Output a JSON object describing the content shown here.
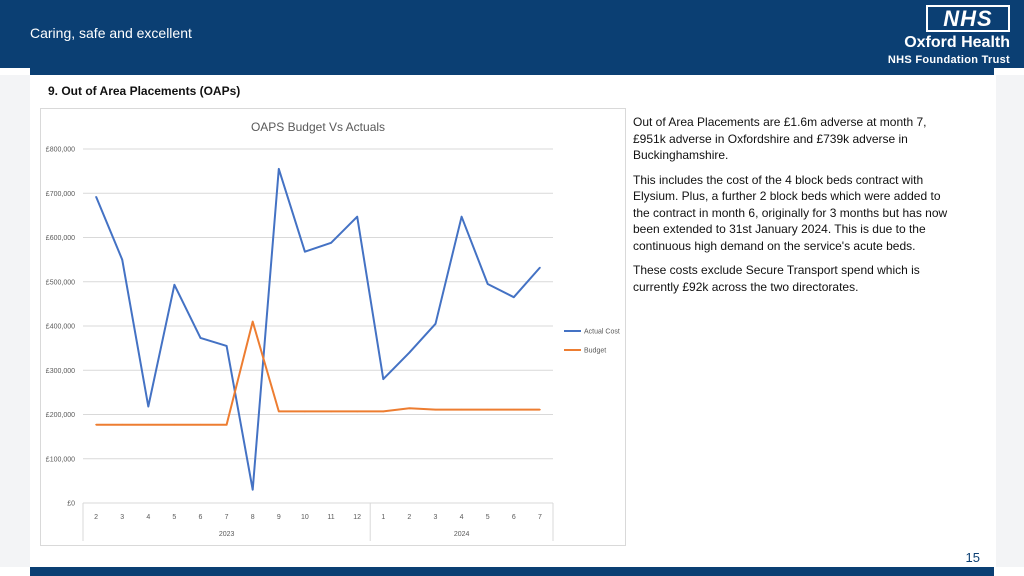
{
  "header": {
    "tagline": "Caring, safe and excellent",
    "logo": "NHS",
    "org_name": "Oxford Health",
    "org_sub": "NHS Foundation Trust"
  },
  "section_title": "9. Out of Area Placements (OAPs)",
  "paragraphs": [
    "Out of Area Placements are £1.6m adverse at month 7, £951k adverse in Oxfordshire and £739k adverse in Buckinghamshire.",
    "This includes the cost of the 4 block beds contract with Elysium.  Plus, a further 2 block beds which were added to the contract in month 6, originally for 3 months but has now been extended to 31st January 2024. This is due to the continuous high demand on the service's acute beds.",
    "These costs exclude Secure Transport spend which is currently £92k across the two directorates."
  ],
  "page_number": "15",
  "chart_data": {
    "type": "line",
    "title": "OAPS Budget Vs Actuals",
    "categories": [
      "2",
      "3",
      "4",
      "5",
      "6",
      "7",
      "8",
      "9",
      "10",
      "11",
      "12",
      "1",
      "2",
      "3",
      "4",
      "5",
      "6",
      "7"
    ],
    "groups": [
      {
        "label": "2023",
        "start": 0,
        "end": 10
      },
      {
        "label": "2024",
        "start": 11,
        "end": 17
      }
    ],
    "y_ticks": [
      "£0",
      "£100,000",
      "£200,000",
      "£300,000",
      "£400,000",
      "£500,000",
      "£600,000",
      "£700,000",
      "£800,000"
    ],
    "ylim": [
      0,
      800000
    ],
    "y_step": 100000,
    "grid": true,
    "legend_position": "right",
    "series": [
      {
        "name": "Actual Cost",
        "color": "#4472c4",
        "values": [
          692000,
          550000,
          218000,
          493000,
          373000,
          355000,
          30000,
          755000,
          568000,
          588000,
          647000,
          280000,
          340000,
          405000,
          647000,
          495000,
          465000,
          532000
        ]
      },
      {
        "name": "Budget",
        "color": "#ed7d31",
        "values": [
          177000,
          177000,
          177000,
          177000,
          177000,
          177000,
          410000,
          207000,
          207000,
          207000,
          207000,
          207000,
          214000,
          211000,
          211000,
          211000,
          211000,
          211000
        ]
      }
    ]
  }
}
